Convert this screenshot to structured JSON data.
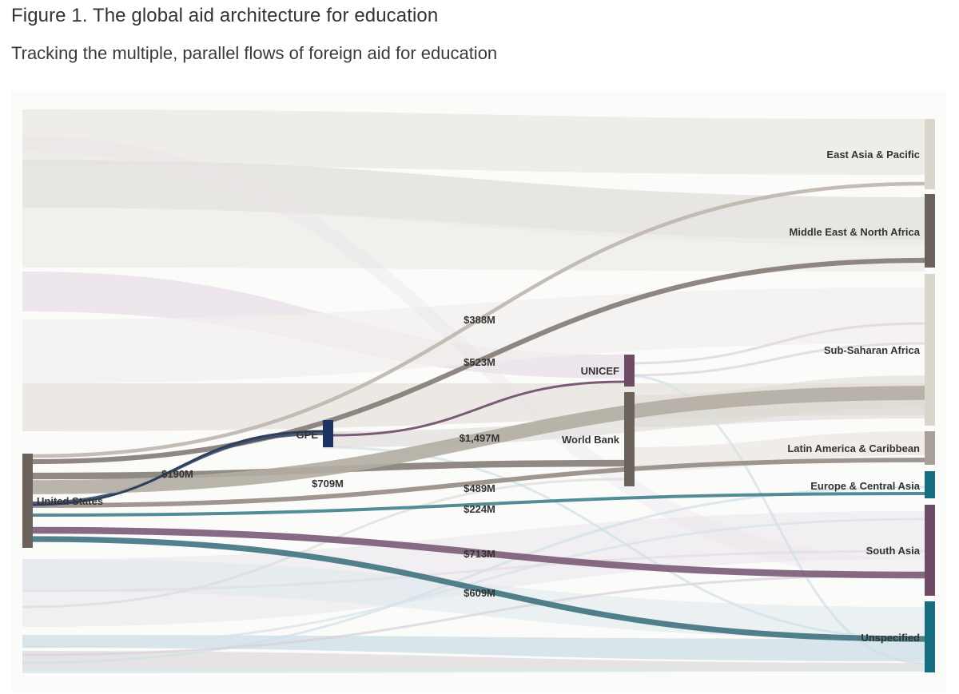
{
  "header": {
    "title": "Figure 1. The global aid architecture for education",
    "subtitle": "Tracking the multiple, parallel flows of foreign aid for education"
  },
  "colors": {
    "us": "#6b625c",
    "gpe": "#1d3461",
    "unicef": "#6e4a67",
    "world_bank": "#6b625c",
    "east_asia": "#d9d6cb",
    "mena": "#6b625c",
    "ssa": "#d9d6cb",
    "latam": "#a89f98",
    "europe": "#166d7f",
    "south_asia": "#6e4a67",
    "unspecified": "#166d7f",
    "background_flow_gray": "#d8d4cf",
    "background_flow_blue": "#cfe0e6",
    "background_flow_purple": "#dccfdc"
  },
  "chart_data": {
    "type": "sankey",
    "title": "Figure 1. The global aid architecture for education",
    "subtitle": "Tracking the multiple, parallel flows of foreign aid for education",
    "nodes": [
      {
        "id": "us",
        "label": "United States"
      },
      {
        "id": "gpe",
        "label": "GPE"
      },
      {
        "id": "unicef",
        "label": "UNICEF"
      },
      {
        "id": "wb",
        "label": "World Bank"
      },
      {
        "id": "eap",
        "label": "East Asia & Pacific"
      },
      {
        "id": "mena",
        "label": "Middle East & North Africa"
      },
      {
        "id": "ssa",
        "label": "Sub-Saharan Africa"
      },
      {
        "id": "lac",
        "label": "Latin America & Caribbean"
      },
      {
        "id": "eca",
        "label": "Europe & Central Asia"
      },
      {
        "id": "sa",
        "label": "South Asia"
      },
      {
        "id": "un",
        "label": "Unspecified"
      }
    ],
    "highlighted_flows": [
      {
        "source": "us",
        "target": "eap",
        "value": 388,
        "label": "$388M"
      },
      {
        "source": "us",
        "target": "mena",
        "value": 523,
        "label": "$523M"
      },
      {
        "source": "us",
        "target": "gpe",
        "value": 190,
        "label": "$190M"
      },
      {
        "source": "us",
        "target": "wb",
        "value": 709,
        "label": "$709M"
      },
      {
        "source": "us",
        "target": "ssa",
        "value": 1497,
        "label": "$1,497M"
      },
      {
        "source": "us",
        "target": "lac",
        "value": 489,
        "label": "$489M"
      },
      {
        "source": "us",
        "target": "eca",
        "value": 224,
        "label": "$224M"
      },
      {
        "source": "us",
        "target": "sa",
        "value": 713,
        "label": "$713M"
      },
      {
        "source": "us",
        "target": "un",
        "value": 609,
        "label": "$609M"
      }
    ]
  }
}
